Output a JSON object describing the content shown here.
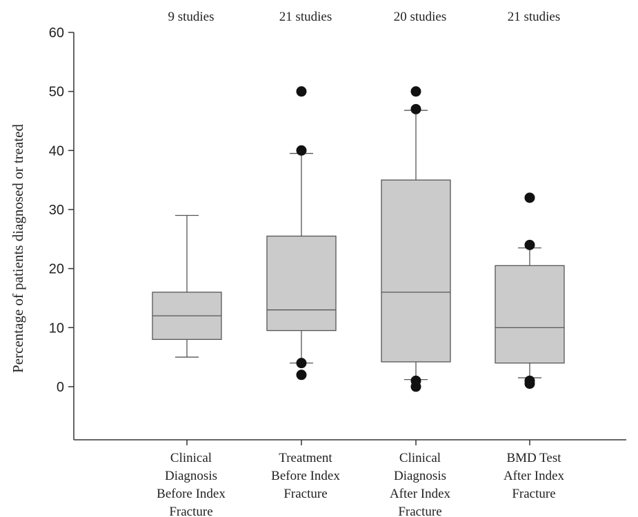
{
  "chart_data": {
    "type": "box",
    "ylabel": "Percentage of patients diagnosed or treated",
    "xlabel": "",
    "ylim": [
      -9,
      60
    ],
    "yticks": [
      0,
      10,
      20,
      30,
      40,
      50,
      60
    ],
    "grid": false,
    "categories": [
      {
        "label_lines": [
          "Clinical",
          "Diagnosis",
          "Before Index",
          "Fracture"
        ],
        "count_label": "9 studies",
        "whisker_low": 5,
        "q1": 8,
        "median": 12,
        "q3": 16,
        "whisker_high": 29,
        "outliers": []
      },
      {
        "label_lines": [
          "Treatment",
          "Before Index",
          "Fracture"
        ],
        "count_label": "21 studies",
        "whisker_low": 4,
        "q1": 9.5,
        "median": 13,
        "q3": 25.5,
        "whisker_high": 39.5,
        "outliers": [
          2,
          4,
          40,
          50
        ]
      },
      {
        "label_lines": [
          "Clinical",
          "Diagnosis",
          "After Index",
          "Fracture"
        ],
        "count_label": "20 studies",
        "whisker_low": 1.2,
        "q1": 4.2,
        "median": 16,
        "q3": 35,
        "whisker_high": 46.8,
        "outliers": [
          0,
          1,
          47,
          50
        ]
      },
      {
        "label_lines": [
          "BMD Test",
          "After Index",
          "Fracture"
        ],
        "count_label": "21 studies",
        "whisker_low": 1.5,
        "q1": 4,
        "median": 10,
        "q3": 20.5,
        "whisker_high": 23.5,
        "outliers": [
          0.5,
          1,
          24,
          32
        ]
      }
    ],
    "colors": {
      "box_fill": "#cbcbcb",
      "box_stroke": "#555555",
      "outlier": "#111111",
      "axis": "#333333"
    }
  }
}
